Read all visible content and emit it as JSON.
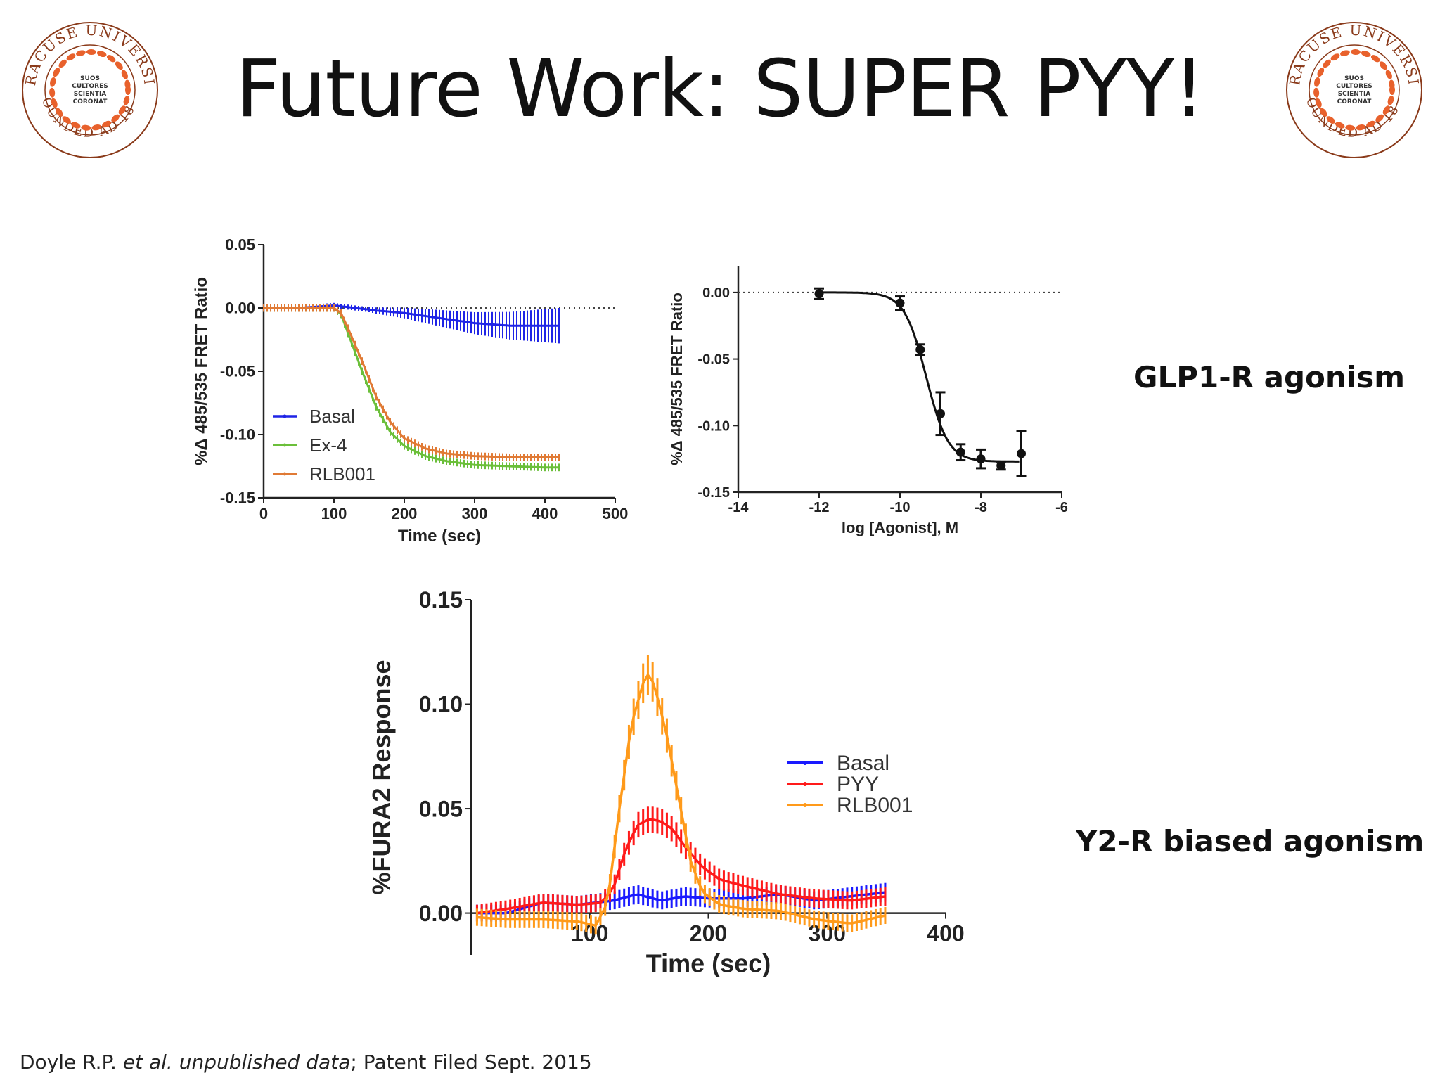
{
  "slide": {
    "title": "Future Work: SUPER PYY!",
    "label_glp1": "GLP1-R agonism",
    "label_y2": "Y2-R biased agonism",
    "footer": {
      "author": "Doyle R.P. ",
      "italic": "et al. unpublished data",
      "rest": "; Patent Filed  Sept. 2015"
    }
  },
  "seal": {
    "outer_text": "SYRACUSE UNIVERSITY",
    "bottom_text": "FOUNDED AD 1870",
    "motto": [
      "SUOS",
      "CULTORES",
      "SCIENTIA",
      "CORONAT"
    ],
    "ring_color": "#e8612c",
    "text_color": "#8a3a1a"
  },
  "chart_data": [
    {
      "type": "line",
      "xlabel": "Time (sec)",
      "ylabel": "%Δ 485/535 FRET Ratio",
      "xlim": [
        0,
        500
      ],
      "ylim": [
        -0.15,
        0.05
      ],
      "xticks": [
        "0",
        "100",
        "200",
        "300",
        "400",
        "500"
      ],
      "yticks": [
        "0.05",
        "0.00",
        "-0.05",
        "-0.10",
        "-0.15"
      ],
      "baseline_dotted": 0,
      "legend_position": "bottom-left",
      "series": [
        {
          "name": "Basal",
          "color": "#1f24e6",
          "error": "increasing",
          "x": [
            0,
            50,
            100,
            130,
            160,
            200,
            250,
            300,
            350,
            400,
            420
          ],
          "y": [
            0.0,
            0.0,
            0.002,
            0.0,
            -0.002,
            -0.004,
            -0.008,
            -0.012,
            -0.014,
            -0.014,
            -0.014
          ]
        },
        {
          "name": "Ex-4",
          "color": "#6bbf3a",
          "error": "small",
          "x": [
            0,
            50,
            100,
            110,
            120,
            140,
            160,
            180,
            200,
            230,
            260,
            300,
            350,
            400,
            420
          ],
          "y": [
            0.0,
            0.0,
            0.0,
            -0.005,
            -0.02,
            -0.05,
            -0.078,
            -0.098,
            -0.109,
            -0.117,
            -0.121,
            -0.124,
            -0.125,
            -0.126,
            -0.126
          ]
        },
        {
          "name": "RLB001",
          "color": "#e07a35",
          "error": "small",
          "x": [
            0,
            50,
            100,
            110,
            120,
            140,
            160,
            180,
            200,
            230,
            260,
            300,
            350,
            400,
            420
          ],
          "y": [
            0.0,
            0.0,
            0.0,
            -0.004,
            -0.016,
            -0.042,
            -0.07,
            -0.09,
            -0.103,
            -0.111,
            -0.115,
            -0.117,
            -0.118,
            -0.118,
            -0.118
          ]
        }
      ]
    },
    {
      "type": "scatter",
      "xlabel": "log [Agonist], M",
      "ylabel": "%Δ 485/535 FRET Ratio",
      "xlim": [
        -14,
        -6
      ],
      "ylim": [
        -0.15,
        0.02
      ],
      "xticks": [
        "-14",
        "-12",
        "-10",
        "-8",
        "-6"
      ],
      "yticks": [
        "0.00",
        "-0.05",
        "-0.10",
        "-0.15"
      ],
      "baseline_dotted": 0,
      "points": [
        {
          "x": -12,
          "y": -0.001,
          "err": 0.004
        },
        {
          "x": -10,
          "y": -0.008,
          "err": 0.005
        },
        {
          "x": -9.5,
          "y": -0.043,
          "err": 0.004
        },
        {
          "x": -9.0,
          "y": -0.091,
          "err": 0.016
        },
        {
          "x": -8.5,
          "y": -0.12,
          "err": 0.006
        },
        {
          "x": -8.0,
          "y": -0.125,
          "err": 0.007
        },
        {
          "x": -7.5,
          "y": -0.13,
          "err": 0.003
        },
        {
          "x": -7.0,
          "y": -0.121,
          "err": 0.017
        }
      ],
      "fit": {
        "top": 0.0,
        "bottom": -0.127,
        "logEC50": -9.35,
        "hill": 1.6
      }
    },
    {
      "type": "line",
      "xlabel": "Time (sec)",
      "ylabel": "%FURA2 Response",
      "xlim": [
        0,
        400
      ],
      "ylim": [
        -0.02,
        0.15
      ],
      "xticks": [
        "100",
        "200",
        "300",
        "400"
      ],
      "yticks": [
        "0.15",
        "0.10",
        "0.05",
        "0.00"
      ],
      "legend_position": "right",
      "series": [
        {
          "name": "Basal",
          "color": "#1a1aff",
          "x": [
            5,
            30,
            60,
            90,
            120,
            140,
            160,
            180,
            200,
            230,
            260,
            290,
            320,
            350
          ],
          "y": [
            0.0,
            0.0,
            0.005,
            0.004,
            0.006,
            0.009,
            0.006,
            0.008,
            0.007,
            0.007,
            0.009,
            0.006,
            0.008,
            0.01
          ]
        },
        {
          "name": "PYY",
          "color": "#ff1a1a",
          "x": [
            5,
            30,
            60,
            90,
            110,
            120,
            130,
            140,
            150,
            160,
            170,
            180,
            195,
            210,
            230,
            260,
            290,
            320,
            350
          ],
          "y": [
            0.0,
            0.002,
            0.005,
            0.004,
            0.005,
            0.012,
            0.03,
            0.042,
            0.045,
            0.044,
            0.04,
            0.032,
            0.022,
            0.016,
            0.013,
            0.009,
            0.007,
            0.006,
            0.008
          ]
        },
        {
          "name": "RLB001",
          "color": "#ff9a1a",
          "x": [
            5,
            30,
            60,
            90,
            105,
            115,
            125,
            135,
            145,
            150,
            155,
            165,
            175,
            185,
            195,
            210,
            230,
            260,
            290,
            320,
            350
          ],
          "y": [
            -0.002,
            -0.003,
            -0.003,
            -0.004,
            -0.006,
            0.005,
            0.05,
            0.09,
            0.11,
            0.115,
            0.108,
            0.085,
            0.055,
            0.025,
            0.01,
            0.004,
            0.002,
            0.001,
            -0.003,
            -0.005,
            -0.001
          ]
        }
      ]
    }
  ]
}
